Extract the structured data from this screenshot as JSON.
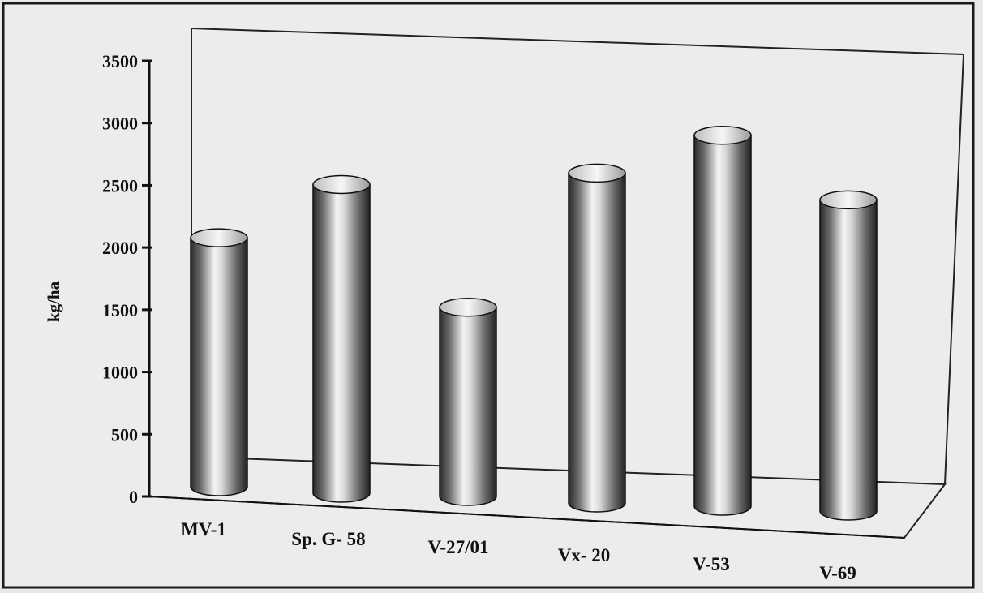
{
  "chart_data": {
    "type": "bar",
    "categories": [
      "MV-1",
      "Sp. G- 58",
      "V-27/01",
      "Vx- 20",
      "V-53",
      "V-69"
    ],
    "values": [
      2000,
      2480,
      1520,
      2650,
      2980,
      2500
    ],
    "ylabel": "kg/ha",
    "xlabel": "",
    "title": "",
    "ylim": [
      0,
      3500
    ],
    "yticks": [
      0,
      500,
      1000,
      1500,
      2000,
      2500,
      3000,
      3500
    ],
    "style": "3d-cylinder",
    "grid": false,
    "legend": "none"
  }
}
